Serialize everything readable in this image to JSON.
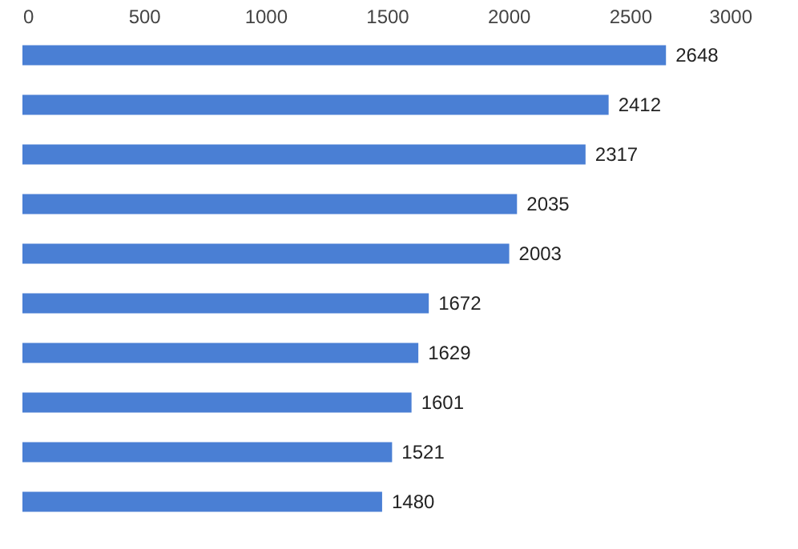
{
  "chart_data": {
    "type": "bar",
    "orientation": "horizontal",
    "categories": [
      null,
      null,
      null,
      null,
      null,
      null,
      null,
      null,
      null,
      null
    ],
    "values": [
      2648,
      2412,
      2317,
      2035,
      2003,
      1672,
      1629,
      1601,
      1521,
      1480
    ],
    "color": "#4a7fd4",
    "xlim": [
      0,
      3000
    ],
    "xticks": [
      0,
      500,
      1000,
      1500,
      2000,
      2500,
      3000
    ],
    "data_labels": true,
    "grid": false
  }
}
